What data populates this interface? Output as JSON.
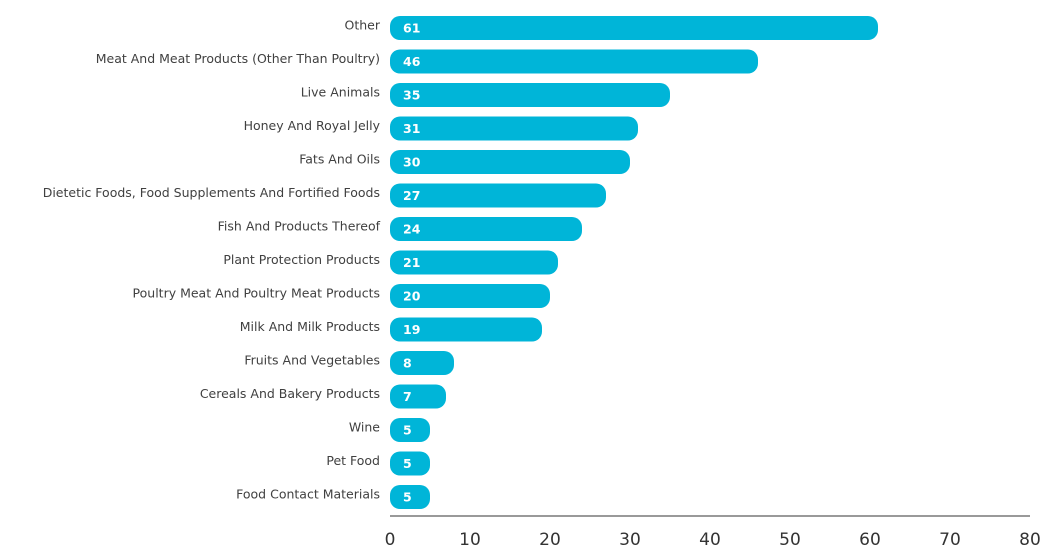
{
  "chart_data": {
    "type": "bar",
    "categories": [
      "Other",
      "Meat And Meat Products (Other Than Poultry)",
      "Live Animals",
      "Honey And Royal Jelly",
      "Fats And Oils",
      "Dietetic Foods, Food Supplements And Fortified Foods",
      "Fish And Products Thereof",
      "Plant Protection Products",
      "Poultry Meat And Poultry Meat Products",
      "Milk And Milk Products",
      "Fruits And Vegetables",
      "Cereals And Bakery Products",
      "Wine",
      "Pet Food",
      "Food Contact Materials"
    ],
    "values": [
      61,
      46,
      35,
      31,
      30,
      27,
      24,
      21,
      20,
      19,
      8,
      7,
      5,
      5,
      5
    ],
    "color": "#00b5d8",
    "xlim": [
      0,
      80
    ],
    "xticks": [
      0,
      10,
      20,
      30,
      40,
      50,
      60,
      70,
      80
    ],
    "grid": false
  }
}
